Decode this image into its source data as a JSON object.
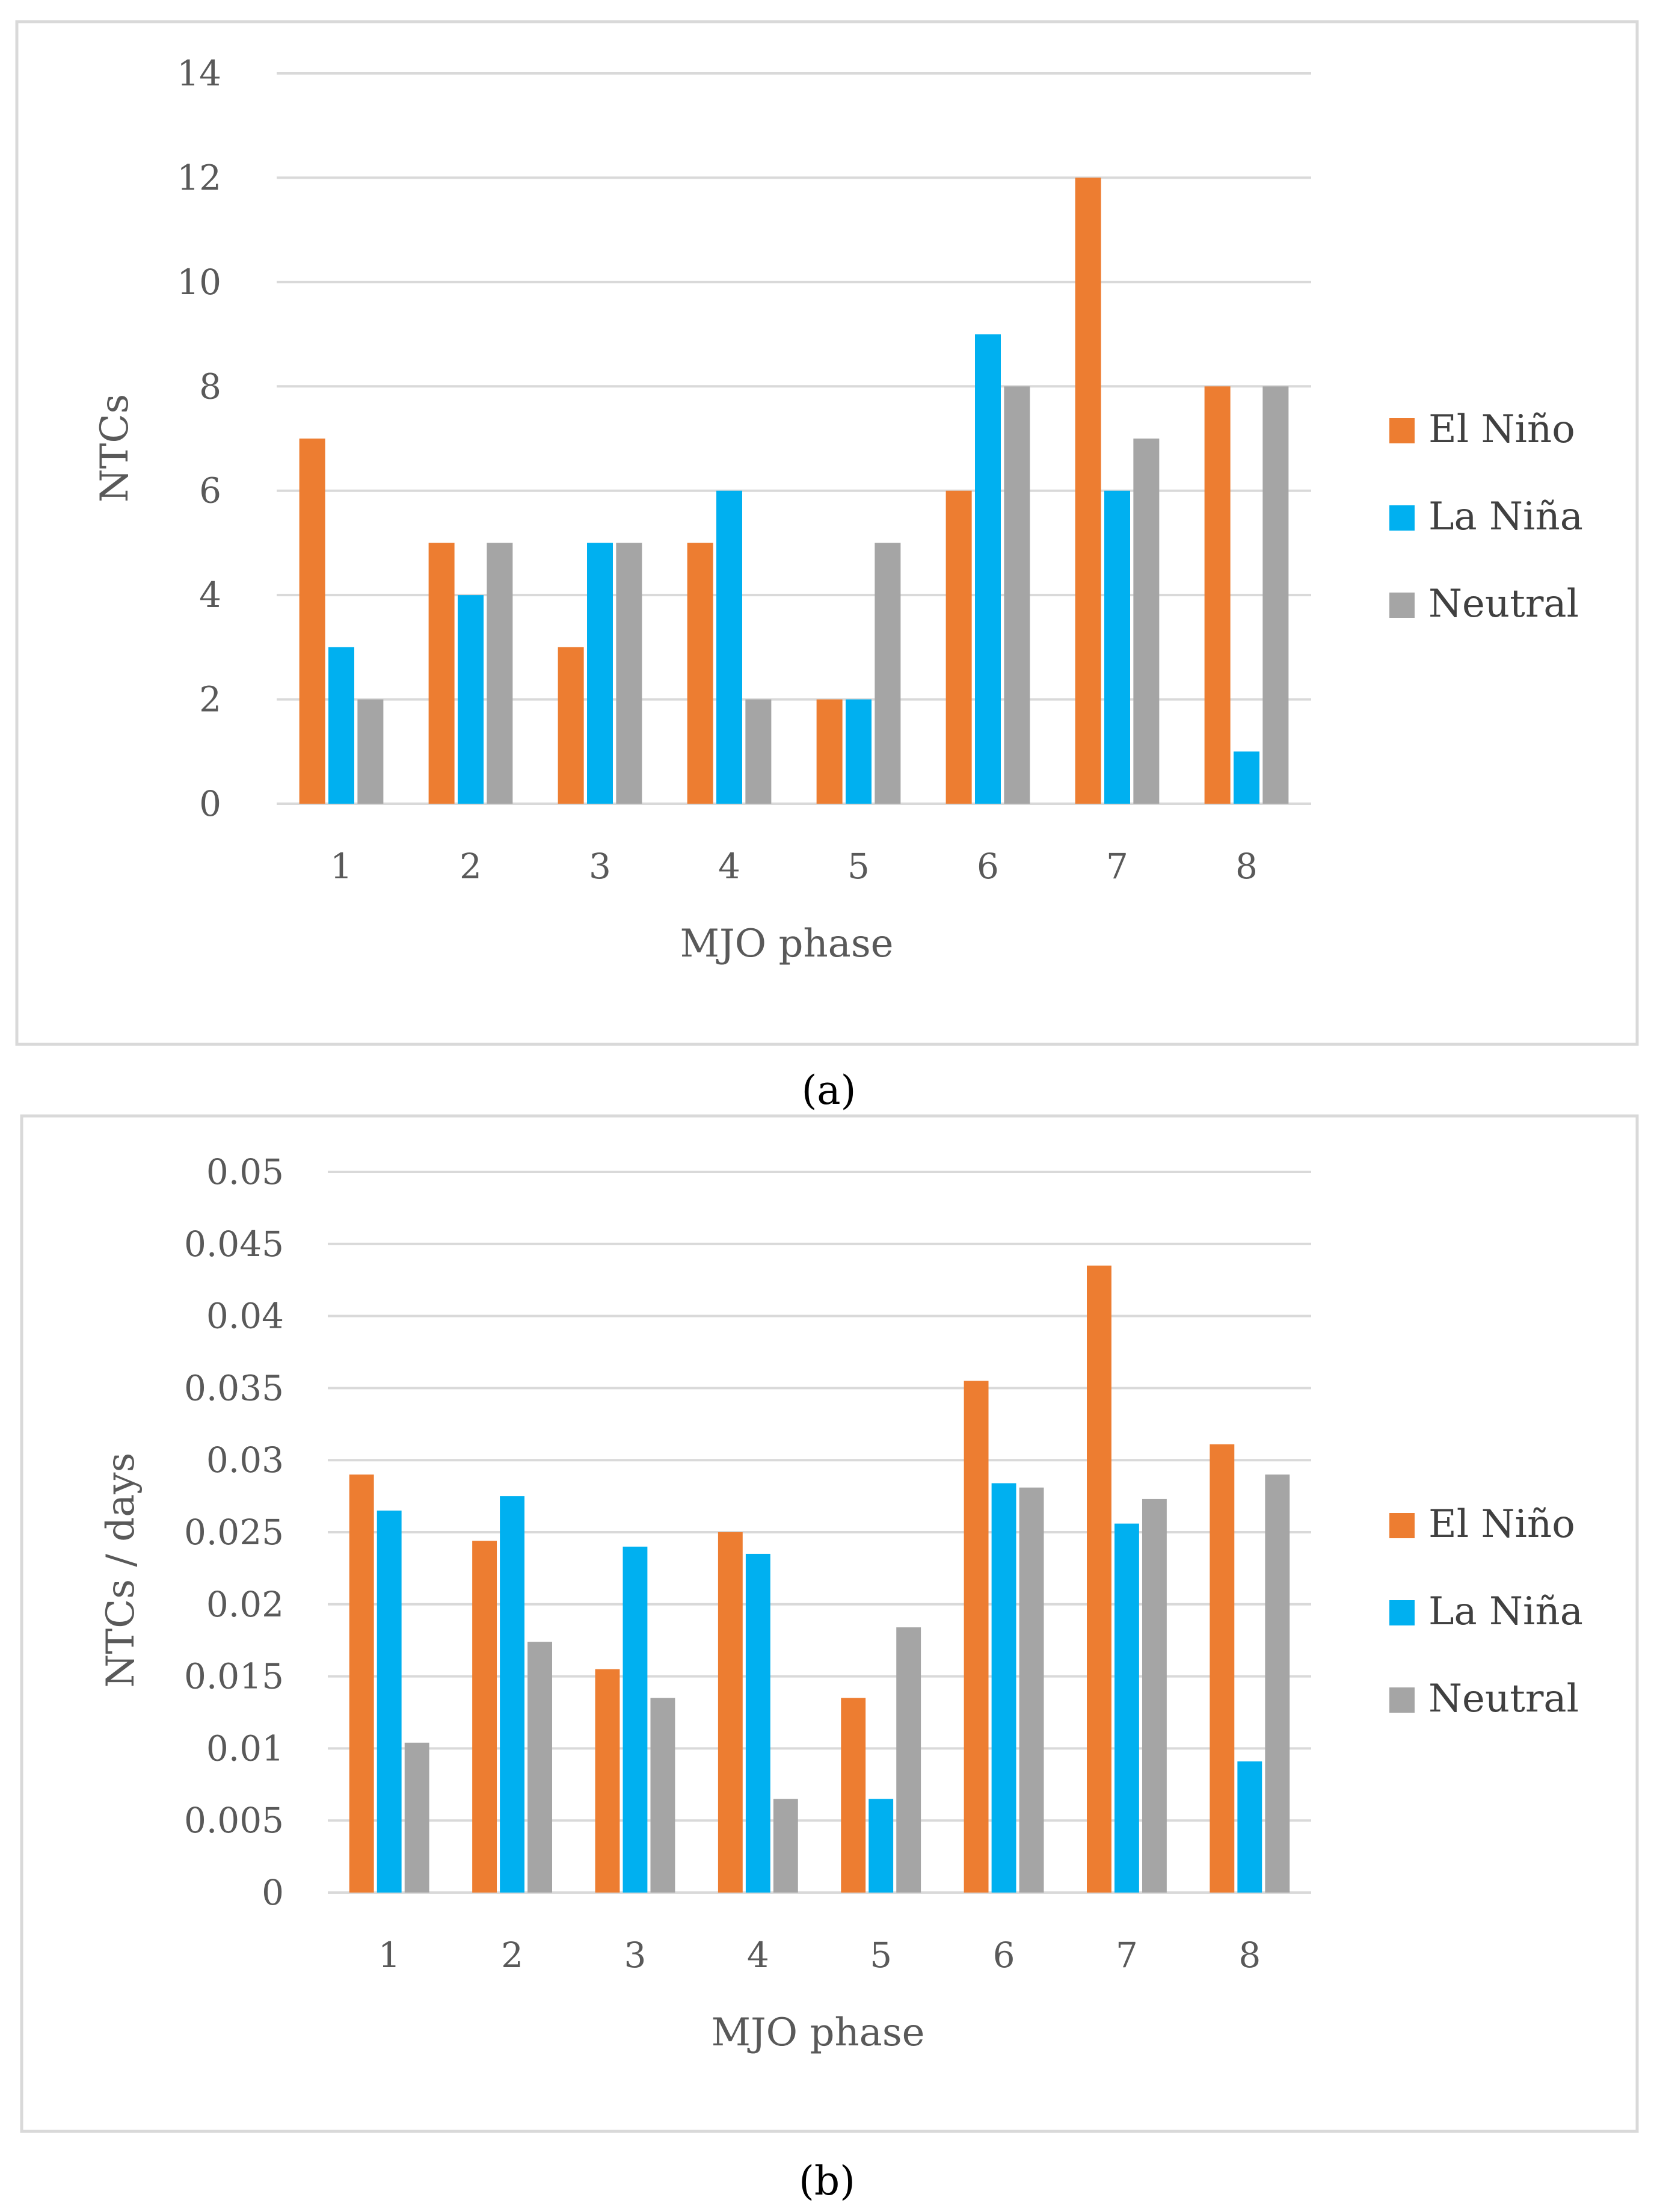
{
  "colors": {
    "El Niño": "#ED7D31",
    "La Niña": "#00B0F0",
    "Neutral": "#A5A5A5",
    "grid": "#D9D9D9",
    "frame": "#D9D9D9"
  },
  "chart_data": [
    {
      "type": "bar",
      "caption": "(a)",
      "categories": [
        "1",
        "2",
        "3",
        "4",
        "5",
        "6",
        "7",
        "8"
      ],
      "series": [
        {
          "name": "El Niño",
          "values": [
            7,
            5,
            3,
            5,
            2,
            6,
            12,
            8
          ]
        },
        {
          "name": "La Niña",
          "values": [
            3,
            4,
            5,
            6,
            2,
            9,
            6,
            1
          ]
        },
        {
          "name": "Neutral",
          "values": [
            2,
            5,
            5,
            2,
            5,
            8,
            7,
            8
          ]
        }
      ],
      "title": "",
      "xlabel": "MJO phase",
      "ylabel": "NTCs",
      "ylim": [
        0,
        14
      ],
      "yticks": [
        0,
        2,
        4,
        6,
        8,
        10,
        12,
        14
      ],
      "ytick_labels": [
        "0",
        "2",
        "4",
        "6",
        "8",
        "10",
        "12",
        "14"
      ],
      "grid": true,
      "legend": "right"
    },
    {
      "type": "bar",
      "caption": "(b)",
      "categories": [
        "1",
        "2",
        "3",
        "4",
        "5",
        "6",
        "7",
        "8"
      ],
      "series": [
        {
          "name": "El Niño",
          "values": [
            0.029,
            0.0244,
            0.0155,
            0.025,
            0.0135,
            0.0355,
            0.0435,
            0.0311
          ]
        },
        {
          "name": "La Niña",
          "values": [
            0.0265,
            0.0275,
            0.024,
            0.0235,
            0.0065,
            0.0284,
            0.0256,
            0.0091
          ]
        },
        {
          "name": "Neutral",
          "values": [
            0.0104,
            0.0174,
            0.0135,
            0.0065,
            0.0184,
            0.0281,
            0.0273,
            0.029
          ]
        }
      ],
      "title": "",
      "xlabel": "MJO phase",
      "ylabel": "NTCs / days",
      "ylim": [
        0,
        0.05
      ],
      "yticks": [
        0,
        0.005,
        0.01,
        0.015,
        0.02,
        0.025,
        0.03,
        0.035,
        0.04,
        0.045,
        0.05
      ],
      "ytick_labels": [
        "0",
        "0.005",
        "0.01",
        "0.015",
        "0.02",
        "0.025",
        "0.03",
        "0.035",
        "0.04",
        "0.045",
        "0.05"
      ],
      "grid": true,
      "legend": "right"
    }
  ]
}
